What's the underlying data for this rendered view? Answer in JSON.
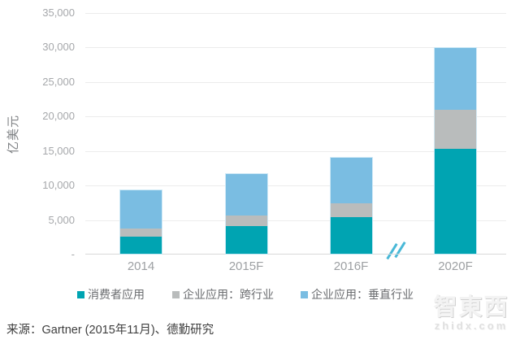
{
  "chart_data": {
    "type": "bar",
    "stacked": true,
    "title": "",
    "xlabel": "",
    "ylabel": "亿美元",
    "ylim": [
      0,
      35000
    ],
    "grid": "horizontal",
    "legend_position": "bottom",
    "categories": [
      "2014",
      "2015F",
      "2016F",
      "2020F"
    ],
    "series": [
      {
        "key": "consumer-apps",
        "name": "消费者应用",
        "color": "#00a4b2",
        "values": [
          2570,
          4160,
          5460,
          15340
        ]
      },
      {
        "key": "enterprise-cross-industry",
        "name": "企业应用：跨行业",
        "color": "#b9bcbc",
        "values": [
          1150,
          1550,
          2010,
          5660
        ]
      },
      {
        "key": "enterprise-vertical",
        "name": "企业应用：垂直行业",
        "color": "#7abde2",
        "values": [
          5670,
          6120,
          6670,
          9110
        ]
      }
    ],
    "totals": [
      9390,
      11830,
      14140,
      30110
    ],
    "y_ticks": [
      {
        "value": 0,
        "label": "-"
      },
      {
        "value": 5000,
        "label": "5,000"
      },
      {
        "value": 10000,
        "label": "10,000"
      },
      {
        "value": 15000,
        "label": "15,000"
      },
      {
        "value": 20000,
        "label": "20,000"
      },
      {
        "value": 25000,
        "label": "25,000"
      },
      {
        "value": 30000,
        "label": "30,000"
      },
      {
        "value": 35000,
        "label": "35,000"
      }
    ],
    "axis_break": {
      "between": [
        "2016F",
        "2020F"
      ],
      "symbol": "//",
      "color": "#49b8d7"
    }
  },
  "footer": {
    "source_note": "来源：Gartner (2015年11月)、德勤研究"
  },
  "watermark": {
    "logo_text": "智東西",
    "domain_text": "zhidx.com"
  }
}
